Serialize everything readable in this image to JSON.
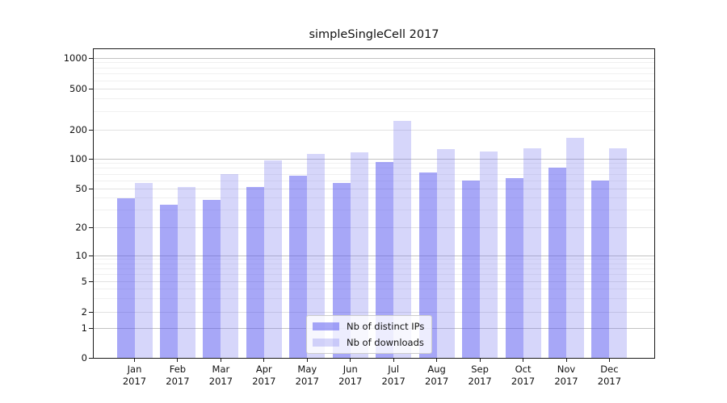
{
  "figure": {
    "title": "simpleSingleCell 2017",
    "background": "#ffffff"
  },
  "legend": {
    "items": [
      {
        "label": "Nb of distinct IPs",
        "color": "rgba(80,80,240,0.5)"
      },
      {
        "label": "Nb of downloads",
        "color": "rgba(120,120,238,0.3)"
      }
    ]
  },
  "chart_data": {
    "type": "bar",
    "title": "simpleSingleCell 2017",
    "categories": [
      "Jan 2017",
      "Feb 2017",
      "Mar 2017",
      "Apr 2017",
      "May 2017",
      "Jun 2017",
      "Jul 2017",
      "Aug 2017",
      "Sep 2017",
      "Oct 2017",
      "Nov 2017",
      "Dec 2017"
    ],
    "series": [
      {
        "name": "Nb of distinct IPs",
        "color": "rgba(80,80,240,0.5)",
        "values": [
          40,
          34,
          38,
          52,
          68,
          57,
          92,
          73,
          60,
          64,
          82,
          60
        ]
      },
      {
        "name": "Nb of downloads",
        "color": "rgba(120,120,238,0.3)",
        "values": [
          57,
          52,
          70,
          97,
          112,
          116,
          245,
          127,
          118,
          128,
          165,
          128
        ]
      }
    ],
    "xlabel": "",
    "ylabel": "",
    "yscale": "symlog",
    "y_ticks": [
      0,
      1,
      2,
      5,
      10,
      20,
      50,
      100,
      200,
      500,
      1000
    ],
    "ylim": [
      0,
      1300
    ],
    "grid": "horizontal",
    "legend_position": "lower-center-inside",
    "grid_colors": {
      "major": "#c2c2c2",
      "mid": "#e2e2e2",
      "minor": "#f0f0f0"
    }
  }
}
